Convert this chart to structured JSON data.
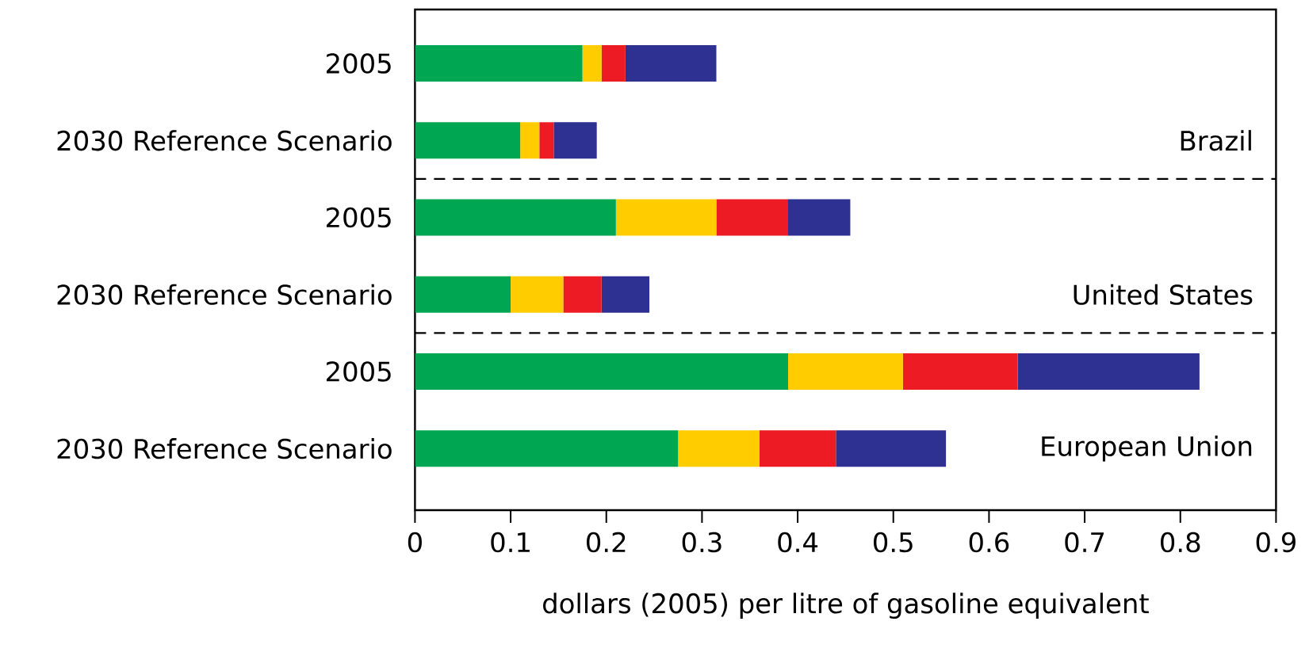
{
  "chart_data": {
    "type": "bar",
    "orientation": "horizontal",
    "stacked": true,
    "xlabel": "dollars (2005) per litre of gasoline equivalent",
    "categories": [
      "2005",
      "2030 Reference Scenario",
      "2005",
      "2030 Reference Scenario",
      "2005",
      "2030 Reference Scenario"
    ],
    "series": [
      {
        "color": "#00a651",
        "values": [
          0.175,
          0.11,
          0.21,
          0.1,
          0.39,
          0.275
        ]
      },
      {
        "color": "#ffcc00",
        "values": [
          0.02,
          0.02,
          0.105,
          0.055,
          0.12,
          0.085
        ]
      },
      {
        "color": "#ed1c24",
        "values": [
          0.025,
          0.015,
          0.075,
          0.04,
          0.12,
          0.08
        ]
      },
      {
        "color": "#2e3192",
        "values": [
          0.095,
          0.045,
          0.065,
          0.05,
          0.19,
          0.115
        ]
      }
    ],
    "xlim": [
      0,
      0.9
    ],
    "xticks": [
      0,
      0.1,
      0.2,
      0.3,
      0.4,
      0.5,
      0.6,
      0.7,
      0.8,
      0.9
    ],
    "annotations": [
      "Brazil",
      "United States",
      "European Union"
    ]
  }
}
